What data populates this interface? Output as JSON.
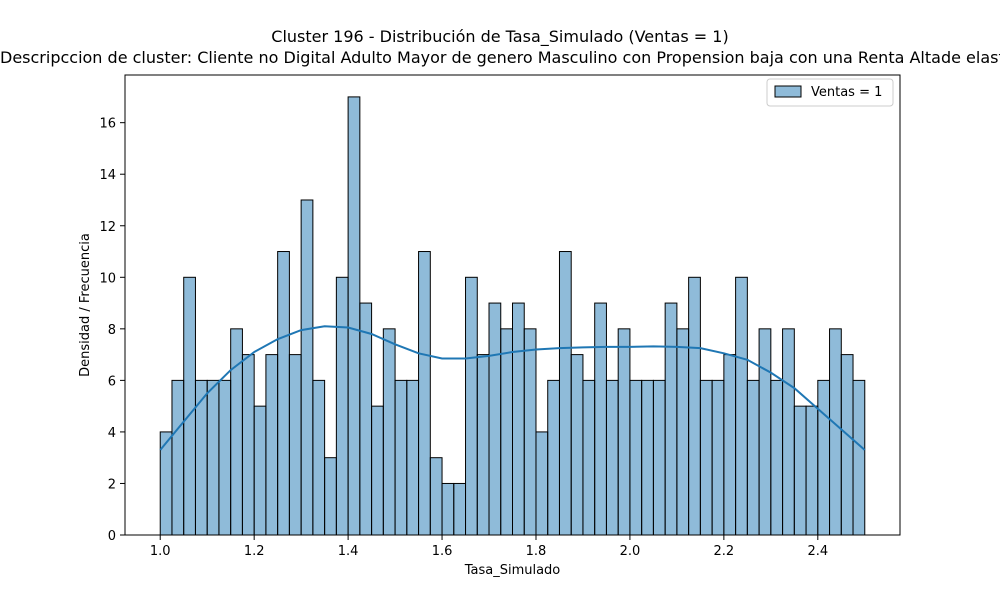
{
  "chart_data": {
    "type": "bar",
    "title": "Cluster 196 - Distribución de Tasa_Simulado (Ventas = 1)",
    "subtitle": "Descripccion de cluster: Cliente no Digital Adulto Mayor de genero Masculino con Propension baja con una Renta Altade elasticidad",
    "xlabel": "Tasa_Simulado",
    "ylabel": "Densidad / Frecuencia",
    "xlim": [
      0.925,
      2.575
    ],
    "ylim": [
      0,
      17.85
    ],
    "xticks": [
      1.0,
      1.2,
      1.4,
      1.6,
      1.8,
      2.0,
      2.2,
      2.4
    ],
    "xtick_labels": [
      "1.0",
      "1.2",
      "1.4",
      "1.6",
      "1.8",
      "2.0",
      "2.2",
      "2.4"
    ],
    "yticks": [
      0,
      2,
      4,
      6,
      8,
      10,
      12,
      14,
      16
    ],
    "ytick_labels": [
      "0",
      "2",
      "4",
      "6",
      "8",
      "10",
      "12",
      "14",
      "16"
    ],
    "bin_start": 1.0,
    "bin_end": 2.5,
    "counts": [
      4,
      6,
      10,
      6,
      6,
      6,
      8,
      7,
      5,
      7,
      11,
      7,
      13,
      6,
      3,
      10,
      17,
      9,
      5,
      8,
      6,
      6,
      11,
      3,
      2,
      2,
      10,
      7,
      9,
      8,
      9,
      8,
      4,
      6,
      11,
      7,
      6,
      9,
      6,
      8,
      6,
      6,
      6,
      9,
      8,
      10,
      6,
      6,
      7,
      10,
      6,
      8,
      6,
      8,
      5,
      5,
      6,
      8,
      7,
      6
    ],
    "kde": {
      "x": [
        1.0,
        1.05,
        1.1,
        1.15,
        1.2,
        1.25,
        1.3,
        1.35,
        1.4,
        1.45,
        1.5,
        1.55,
        1.6,
        1.65,
        1.7,
        1.75,
        1.8,
        1.85,
        1.9,
        1.95,
        2.0,
        2.05,
        2.1,
        2.15,
        2.2,
        2.25,
        2.3,
        2.35,
        2.4,
        2.45,
        2.5
      ],
      "y": [
        3.3,
        4.4,
        5.5,
        6.4,
        7.1,
        7.6,
        7.95,
        8.1,
        8.05,
        7.8,
        7.4,
        7.05,
        6.85,
        6.85,
        6.95,
        7.1,
        7.2,
        7.25,
        7.28,
        7.3,
        7.3,
        7.32,
        7.3,
        7.25,
        7.05,
        6.8,
        6.3,
        5.7,
        4.9,
        4.1,
        3.3
      ]
    },
    "bar_color": "#1f77b4",
    "bar_alpha": 0.5,
    "line_color": "#1f77b4",
    "grid": false,
    "legend_position": "top-right",
    "series": [
      {
        "name": "Ventas = 1"
      }
    ]
  }
}
